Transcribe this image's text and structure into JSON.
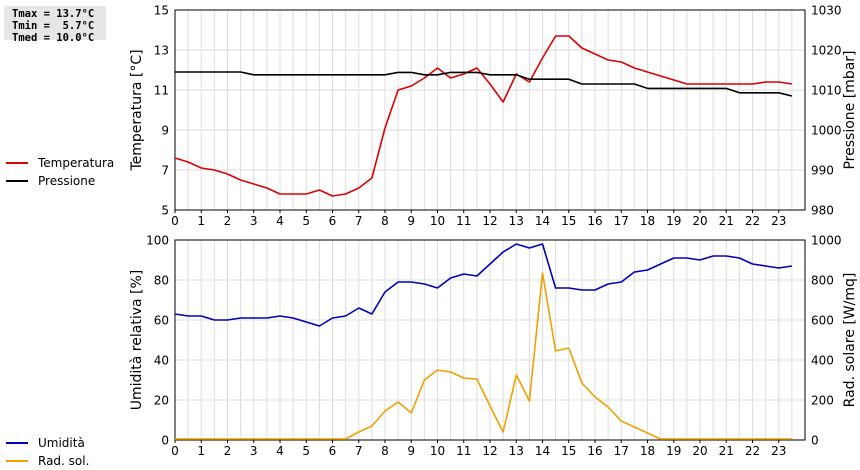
{
  "stats": {
    "tmax": "Tmax = 13.7°C",
    "tmin": "Tmin =  5.7°C",
    "tmed": "Tmed = 10.0°C"
  },
  "legend_top": [
    {
      "label": "Temperatura",
      "color": "#dd0000"
    },
    {
      "label": "Pressione",
      "color": "#000000"
    }
  ],
  "legend_bottom": [
    {
      "label": "Umidità",
      "color": "#0000bb"
    },
    {
      "label": "Rad. sol.",
      "color": "#f0a000"
    }
  ],
  "chart_data": [
    {
      "type": "line",
      "xlim": [
        0,
        24
      ],
      "xticks": [
        "0",
        "1",
        "2",
        "3",
        "4",
        "5",
        "6",
        "7",
        "8",
        "9",
        "10",
        "11",
        "12",
        "13",
        "14",
        "15",
        "16",
        "17",
        "18",
        "19",
        "20",
        "21",
        "22",
        "23"
      ],
      "ylabel": "Temperatura [°C]",
      "ylim": [
        5,
        15
      ],
      "yticks": [
        "5",
        "7",
        "9",
        "11",
        "13",
        "15"
      ],
      "y2label": "Pressione [mbar]",
      "y2lim": [
        980,
        1030
      ],
      "y2ticks": [
        "980",
        "990",
        "1000",
        "1010",
        "1020",
        "1030"
      ],
      "grid": true,
      "series": [
        {
          "name": "Temperatura",
          "axis": "left",
          "color": "#dd0000",
          "x": [
            0,
            0.5,
            1,
            1.5,
            2,
            2.5,
            3,
            3.5,
            4,
            4.5,
            5,
            5.5,
            6,
            6.5,
            7,
            7.5,
            8,
            8.5,
            9,
            9.5,
            10,
            10.5,
            11,
            11.5,
            12,
            12.5,
            13,
            13.5,
            14,
            14.5,
            15,
            15.5,
            16,
            16.5,
            17,
            17.5,
            18,
            18.5,
            19,
            19.5,
            20,
            20.5,
            21,
            21.5,
            22,
            22.5,
            23,
            23.5
          ],
          "values": [
            7.6,
            7.4,
            7.1,
            7.0,
            6.8,
            6.5,
            6.3,
            6.1,
            5.8,
            5.8,
            5.8,
            6.0,
            5.7,
            5.8,
            6.1,
            6.6,
            9.1,
            11.0,
            11.2,
            11.6,
            12.1,
            11.6,
            11.8,
            12.1,
            11.3,
            10.4,
            11.8,
            11.4,
            12.6,
            13.7,
            13.7,
            13.1,
            12.8,
            12.5,
            12.4,
            12.1,
            11.9,
            11.7,
            11.5,
            11.3,
            11.3,
            11.3,
            11.3,
            11.3,
            11.3,
            11.4,
            11.4,
            11.3
          ]
        },
        {
          "name": "Pressione",
          "axis": "right",
          "color": "#000000",
          "x": [
            0,
            2,
            2.5,
            3,
            4,
            5,
            6,
            7,
            8,
            8.5,
            9,
            9.5,
            10,
            10.5,
            11,
            11.5,
            12,
            13,
            13.5,
            14,
            15,
            15.5,
            16,
            17,
            17.5,
            18,
            19,
            20,
            20.5,
            21,
            21.5,
            22,
            23,
            23.5
          ],
          "values": [
            1014.5,
            1014.5,
            1014.5,
            1013.8,
            1013.8,
            1013.8,
            1013.8,
            1013.8,
            1013.8,
            1014.4,
            1014.4,
            1013.8,
            1013.8,
            1014.4,
            1014.4,
            1014.4,
            1013.8,
            1013.8,
            1012.7,
            1012.7,
            1012.7,
            1011.5,
            1011.5,
            1011.5,
            1011.5,
            1010.4,
            1010.4,
            1010.4,
            1010.4,
            1010.4,
            1009.3,
            1009.3,
            1009.3,
            1008.5
          ]
        }
      ]
    },
    {
      "type": "line",
      "xlim": [
        0,
        24
      ],
      "xticks": [
        "0",
        "1",
        "2",
        "3",
        "4",
        "5",
        "6",
        "7",
        "8",
        "9",
        "10",
        "11",
        "12",
        "13",
        "14",
        "15",
        "16",
        "17",
        "18",
        "19",
        "20",
        "21",
        "22",
        "23"
      ],
      "ylabel": "Umidità relativa [%]",
      "ylim": [
        0,
        100
      ],
      "yticks": [
        "0",
        "20",
        "40",
        "60",
        "80",
        "100"
      ],
      "y2label": "Rad. solare [W/mq]",
      "y2lim": [
        0,
        1000
      ],
      "y2ticks": [
        "0",
        "200",
        "400",
        "600",
        "800",
        "1000"
      ],
      "grid": true,
      "series": [
        {
          "name": "Umidità",
          "axis": "left",
          "color": "#0000bb",
          "x": [
            0,
            0.5,
            1,
            1.5,
            2,
            2.5,
            3,
            3.5,
            4,
            4.5,
            5,
            5.5,
            6,
            6.5,
            7,
            7.5,
            8,
            8.5,
            9,
            9.5,
            10,
            10.5,
            11,
            11.5,
            12,
            12.5,
            13,
            13.5,
            14,
            14.5,
            15,
            15.5,
            16,
            16.5,
            17,
            17.5,
            18,
            18.5,
            19,
            19.5,
            20,
            20.5,
            21,
            21.5,
            22,
            22.5,
            23,
            23.5
          ],
          "values": [
            63,
            62,
            62,
            60,
            60,
            61,
            61,
            61,
            62,
            61,
            59,
            57,
            61,
            62,
            66,
            63,
            74,
            79,
            79,
            78,
            76,
            81,
            83,
            82,
            88,
            94,
            98,
            96,
            98,
            76,
            76,
            75,
            75,
            78,
            79,
            84,
            85,
            88,
            91,
            91,
            90,
            92,
            92,
            91,
            88,
            87,
            86,
            87
          ]
        },
        {
          "name": "Rad. sol.",
          "axis": "right",
          "color": "#f0a000",
          "x": [
            0,
            1,
            2,
            3,
            4,
            5,
            6,
            6.5,
            7,
            7.5,
            8,
            8.5,
            9,
            9.5,
            10,
            10.5,
            11,
            11.5,
            12,
            12.5,
            13,
            13.5,
            14,
            14.5,
            15,
            15.5,
            16,
            16.5,
            17,
            17.5,
            18,
            18.5,
            19,
            20,
            21,
            22,
            23,
            23.5
          ],
          "values": [
            5,
            5,
            5,
            5,
            5,
            5,
            5,
            5,
            40,
            70,
            145,
            190,
            135,
            300,
            350,
            340,
            310,
            305,
            170,
            40,
            325,
            195,
            835,
            445,
            460,
            285,
            215,
            165,
            95,
            65,
            35,
            5,
            5,
            5,
            5,
            5,
            5,
            5
          ]
        }
      ]
    }
  ]
}
